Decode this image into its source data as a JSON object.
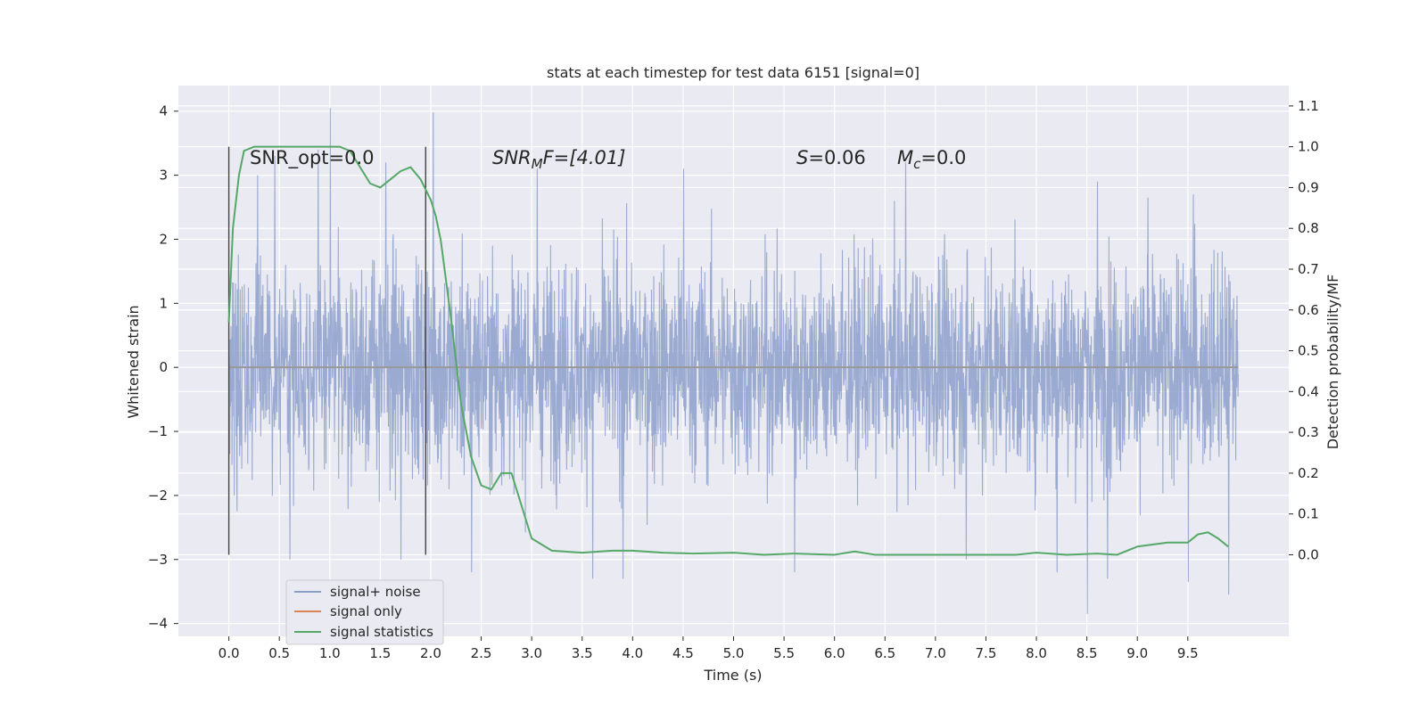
{
  "chart_data": {
    "type": "line",
    "title": "stats at each timestep for test data 6151 [signal=0]",
    "xlabel": "Time (s)",
    "ylabel": "Whitened strain",
    "ylabel_right": "Detection probability/MF",
    "xlim": [
      -0.5,
      10.5
    ],
    "ylim": [
      -4.2,
      4.4
    ],
    "ylim_right": [
      -0.2,
      1.15
    ],
    "x_ticks": [
      "0.0",
      "0.5",
      "1.0",
      "1.5",
      "2.0",
      "2.5",
      "3.0",
      "3.5",
      "4.0",
      "4.5",
      "5.0",
      "5.5",
      "6.0",
      "6.5",
      "7.0",
      "7.5",
      "8.0",
      "8.5",
      "9.0",
      "9.5"
    ],
    "y_ticks": [
      "4",
      "3",
      "2",
      "1",
      "0",
      "−1",
      "−2",
      "−3",
      "−4"
    ],
    "y_ticks_right": [
      "1.1",
      "1.0",
      "0.9",
      "0.8",
      "0.7",
      "0.6",
      "0.5",
      "0.4",
      "0.3",
      "0.2",
      "0.1",
      "0.0"
    ],
    "grid": true,
    "legend_position": "lower-left",
    "annotations": {
      "snr_opt": "SNR_opt=0.0",
      "snr_mf_base": "SNR",
      "snr_mf_sub": "M",
      "snr_mf_rest": "F=[4.01]",
      "s_symbol": "S",
      "s_value": "=0.06",
      "mc_symbol": "M",
      "mc_sub": "c",
      "mc_value": "=0.0"
    },
    "window_markers": [
      0.0,
      1.95
    ],
    "series": [
      {
        "name": "signal+ noise",
        "color": "#8c9fcb",
        "description_of_range": "dense noise between -4 and 4 over 0 to 10 s",
        "t_start": 0.0,
        "t_end": 10.0,
        "envelope_high": 1.9,
        "envelope_low": -1.8,
        "peaks_high": [
          [
            1.0,
            4.05
          ],
          [
            2.02,
            3.98
          ],
          [
            0.28,
            3.0
          ],
          [
            0.45,
            3.3
          ],
          [
            0.88,
            3.4
          ],
          [
            1.55,
            3.2
          ],
          [
            3.05,
            3.1
          ],
          [
            4.5,
            3.1
          ],
          [
            6.7,
            3.2
          ],
          [
            8.6,
            2.9
          ],
          [
            9.1,
            2.65
          ],
          [
            9.55,
            2.7
          ]
        ],
        "peaks_low": [
          [
            0.6,
            -3.0
          ],
          [
            1.7,
            -3.0
          ],
          [
            2.4,
            -3.2
          ],
          [
            3.6,
            -3.3
          ],
          [
            3.9,
            -3.3
          ],
          [
            5.6,
            -3.2
          ],
          [
            7.3,
            -3.0
          ],
          [
            8.2,
            -3.2
          ],
          [
            8.5,
            -3.85
          ],
          [
            8.7,
            -3.3
          ],
          [
            9.5,
            -3.35
          ],
          [
            9.9,
            -3.55
          ]
        ]
      },
      {
        "name": "signal only",
        "color": "#dd8452",
        "x": [
          0.0,
          10.0
        ],
        "y": [
          0.0,
          0.0
        ]
      },
      {
        "name": "signal statistics",
        "color": "#55a868",
        "axis": "right",
        "x": [
          0.0,
          0.04,
          0.1,
          0.15,
          0.25,
          0.4,
          0.6,
          0.8,
          1.0,
          1.1,
          1.2,
          1.3,
          1.4,
          1.5,
          1.6,
          1.7,
          1.8,
          1.9,
          2.0,
          2.05,
          2.1,
          2.2,
          2.3,
          2.4,
          2.5,
          2.6,
          2.7,
          2.8,
          2.9,
          3.0,
          3.2,
          3.5,
          3.8,
          4.0,
          4.3,
          4.6,
          5.0,
          5.3,
          5.6,
          6.0,
          6.2,
          6.4,
          6.7,
          7.0,
          7.5,
          7.8,
          8.0,
          8.3,
          8.6,
          8.8,
          9.0,
          9.3,
          9.5,
          9.6,
          9.7,
          9.8,
          9.9
        ],
        "y": [
          0.57,
          0.8,
          0.93,
          0.99,
          1.0,
          1.0,
          1.0,
          1.0,
          1.0,
          1.0,
          0.99,
          0.95,
          0.91,
          0.9,
          0.92,
          0.94,
          0.95,
          0.92,
          0.87,
          0.83,
          0.77,
          0.58,
          0.37,
          0.24,
          0.17,
          0.16,
          0.2,
          0.2,
          0.12,
          0.04,
          0.01,
          0.005,
          0.01,
          0.01,
          0.005,
          0.003,
          0.005,
          0.0,
          0.003,
          0.0,
          0.008,
          0.0,
          0.0,
          0.0,
          0.0,
          0.0,
          0.005,
          0.0,
          0.003,
          0.0,
          0.02,
          0.03,
          0.03,
          0.05,
          0.055,
          0.04,
          0.02
        ]
      }
    ]
  }
}
